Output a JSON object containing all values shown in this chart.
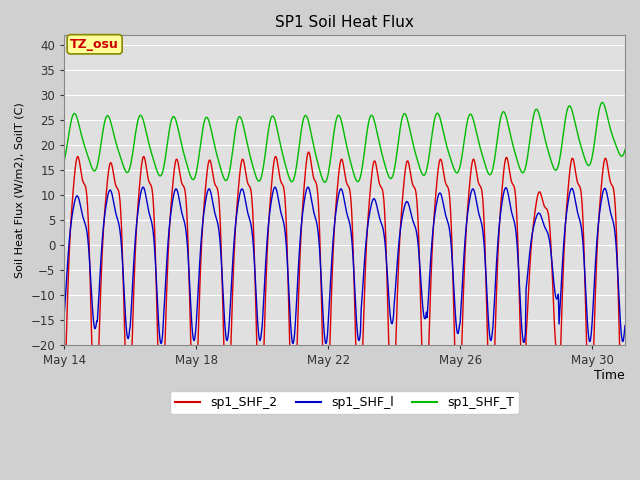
{
  "title": "SP1 Soil Heat Flux",
  "xlabel": "Time",
  "ylabel": "Soil Heat Flux (W/m2), SoilT (C)",
  "ylim": [
    -20,
    42
  ],
  "yticks": [
    -20,
    -15,
    -10,
    -5,
    0,
    5,
    10,
    15,
    20,
    25,
    30,
    35,
    40
  ],
  "xtick_labels": [
    "May 14",
    "May 18",
    "May 22",
    "May 26",
    "May 30"
  ],
  "xtick_positions": [
    0,
    4,
    8,
    12,
    16
  ],
  "xlim_days": [
    0,
    17
  ],
  "color_shf2": "#dd0000",
  "color_shf1": "#0000cc",
  "color_shft": "#00bb00",
  "fig_bg": "#d0d0d0",
  "plot_bg": "#e0e0e0",
  "grid_color": "#ffffff",
  "annotation_text": "TZ_osu",
  "annotation_bg": "#ffff99",
  "annotation_border": "#888800",
  "legend_entries": [
    "sp1_SHF_2",
    "sp1_SHF_l",
    "sp1_SHF_T"
  ],
  "n_days": 17
}
